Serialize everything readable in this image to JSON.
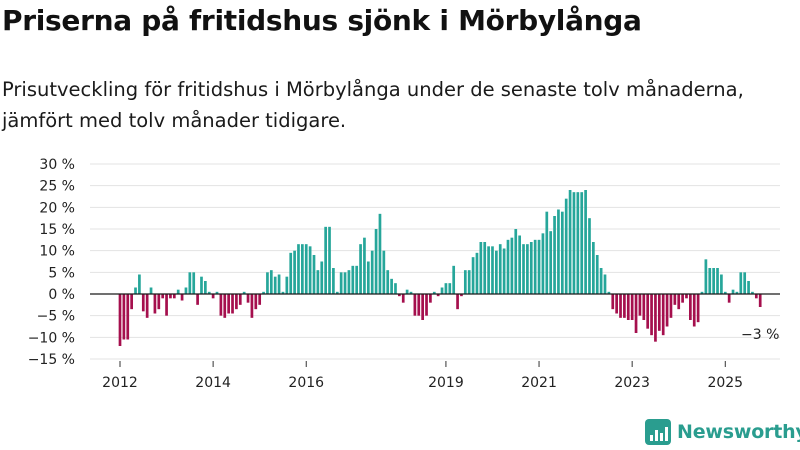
{
  "header": {
    "title": "Priserna på fritidshus sjönk i Mörbylånga",
    "subtitle": "Prisutveckling för fritidshus i Mörbylånga under de senaste tolv månaderna, jämfört med tolv månader tidigare."
  },
  "colors": {
    "positive": "#26a69a",
    "negative": "#a50f4d",
    "brand": "#2a9d8f"
  },
  "brand": {
    "name": "Newsworthy",
    "icon": "bar-chart-logo-icon"
  },
  "chart_data": {
    "type": "bar",
    "title": "Priserna på fritidshus sjönk i Mörbylånga",
    "xlabel": "",
    "ylabel": "",
    "ylim": [
      -15,
      30
    ],
    "yticks": [
      30,
      25,
      20,
      15,
      10,
      5,
      0,
      -5,
      -10,
      -15
    ],
    "ytick_labels": [
      "30 %",
      "25 %",
      "20 %",
      "15 %",
      "10 %",
      "5 %",
      "0 %",
      "−5 %",
      "−10 %",
      "−15 %"
    ],
    "xticks": [
      {
        "label": "2012",
        "index": 0
      },
      {
        "label": "2014",
        "index": 24
      },
      {
        "label": "2016",
        "index": 48
      },
      {
        "label": "2019",
        "index": 84
      },
      {
        "label": "2021",
        "index": 108
      },
      {
        "label": "2023",
        "index": 132
      },
      {
        "label": "2025",
        "index": 156
      }
    ],
    "start": "2012-01",
    "frequency": "monthly",
    "values": [
      -12,
      -10.5,
      -10.5,
      -3.5,
      1.5,
      4.5,
      -4,
      -5.5,
      1.5,
      -4.5,
      -3.5,
      -1,
      -5,
      -1,
      -1,
      1,
      -1.5,
      1.5,
      5,
      5,
      -2.5,
      4,
      3,
      0.5,
      -1,
      0.5,
      -5,
      -5.5,
      -4.5,
      -4.5,
      -3.5,
      -2.5,
      0.5,
      -2,
      -5.5,
      -3.5,
      -2.5,
      0.5,
      5,
      5.5,
      4,
      4.5,
      0.5,
      4,
      9.5,
      10,
      11.5,
      11.5,
      11.5,
      11,
      9,
      5.5,
      7.5,
      15.5,
      15.5,
      6,
      0.5,
      5,
      5,
      5.5,
      6.5,
      6.5,
      11.5,
      13,
      7.5,
      10,
      15,
      18.5,
      10,
      5.5,
      3.5,
      2.5,
      -0.5,
      -2,
      1,
      0.5,
      -5,
      -5,
      -6,
      -5,
      -2,
      0.5,
      -0.5,
      1.5,
      2.5,
      2.5,
      6.5,
      -3.5,
      -0.5,
      5.5,
      5.5,
      8.5,
      9.5,
      12,
      12,
      11,
      11,
      10,
      11.5,
      10.5,
      12.5,
      13,
      15,
      13.5,
      11.5,
      11.5,
      12,
      12.5,
      12.5,
      14,
      19,
      14.5,
      18,
      19.5,
      19,
      22,
      24,
      23.5,
      23.5,
      23.5,
      24,
      17.5,
      12,
      9,
      6,
      4.5,
      0.5,
      -3.5,
      -4.5,
      -5.5,
      -5.5,
      -6,
      -6,
      -9,
      -5,
      -6,
      -8,
      -9.5,
      -11,
      -8.5,
      -9.5,
      -7.5,
      -5.5,
      -2.5,
      -3.5,
      -2,
      -1,
      -6,
      -7.5,
      -6.5,
      0.5,
      8,
      6,
      6,
      6,
      4.5,
      0.5,
      -2,
      1,
      0.5,
      5,
      5,
      3,
      0.5,
      -1,
      -3
    ],
    "annotations": [
      {
        "index": 165,
        "text": "−3 %"
      }
    ]
  }
}
